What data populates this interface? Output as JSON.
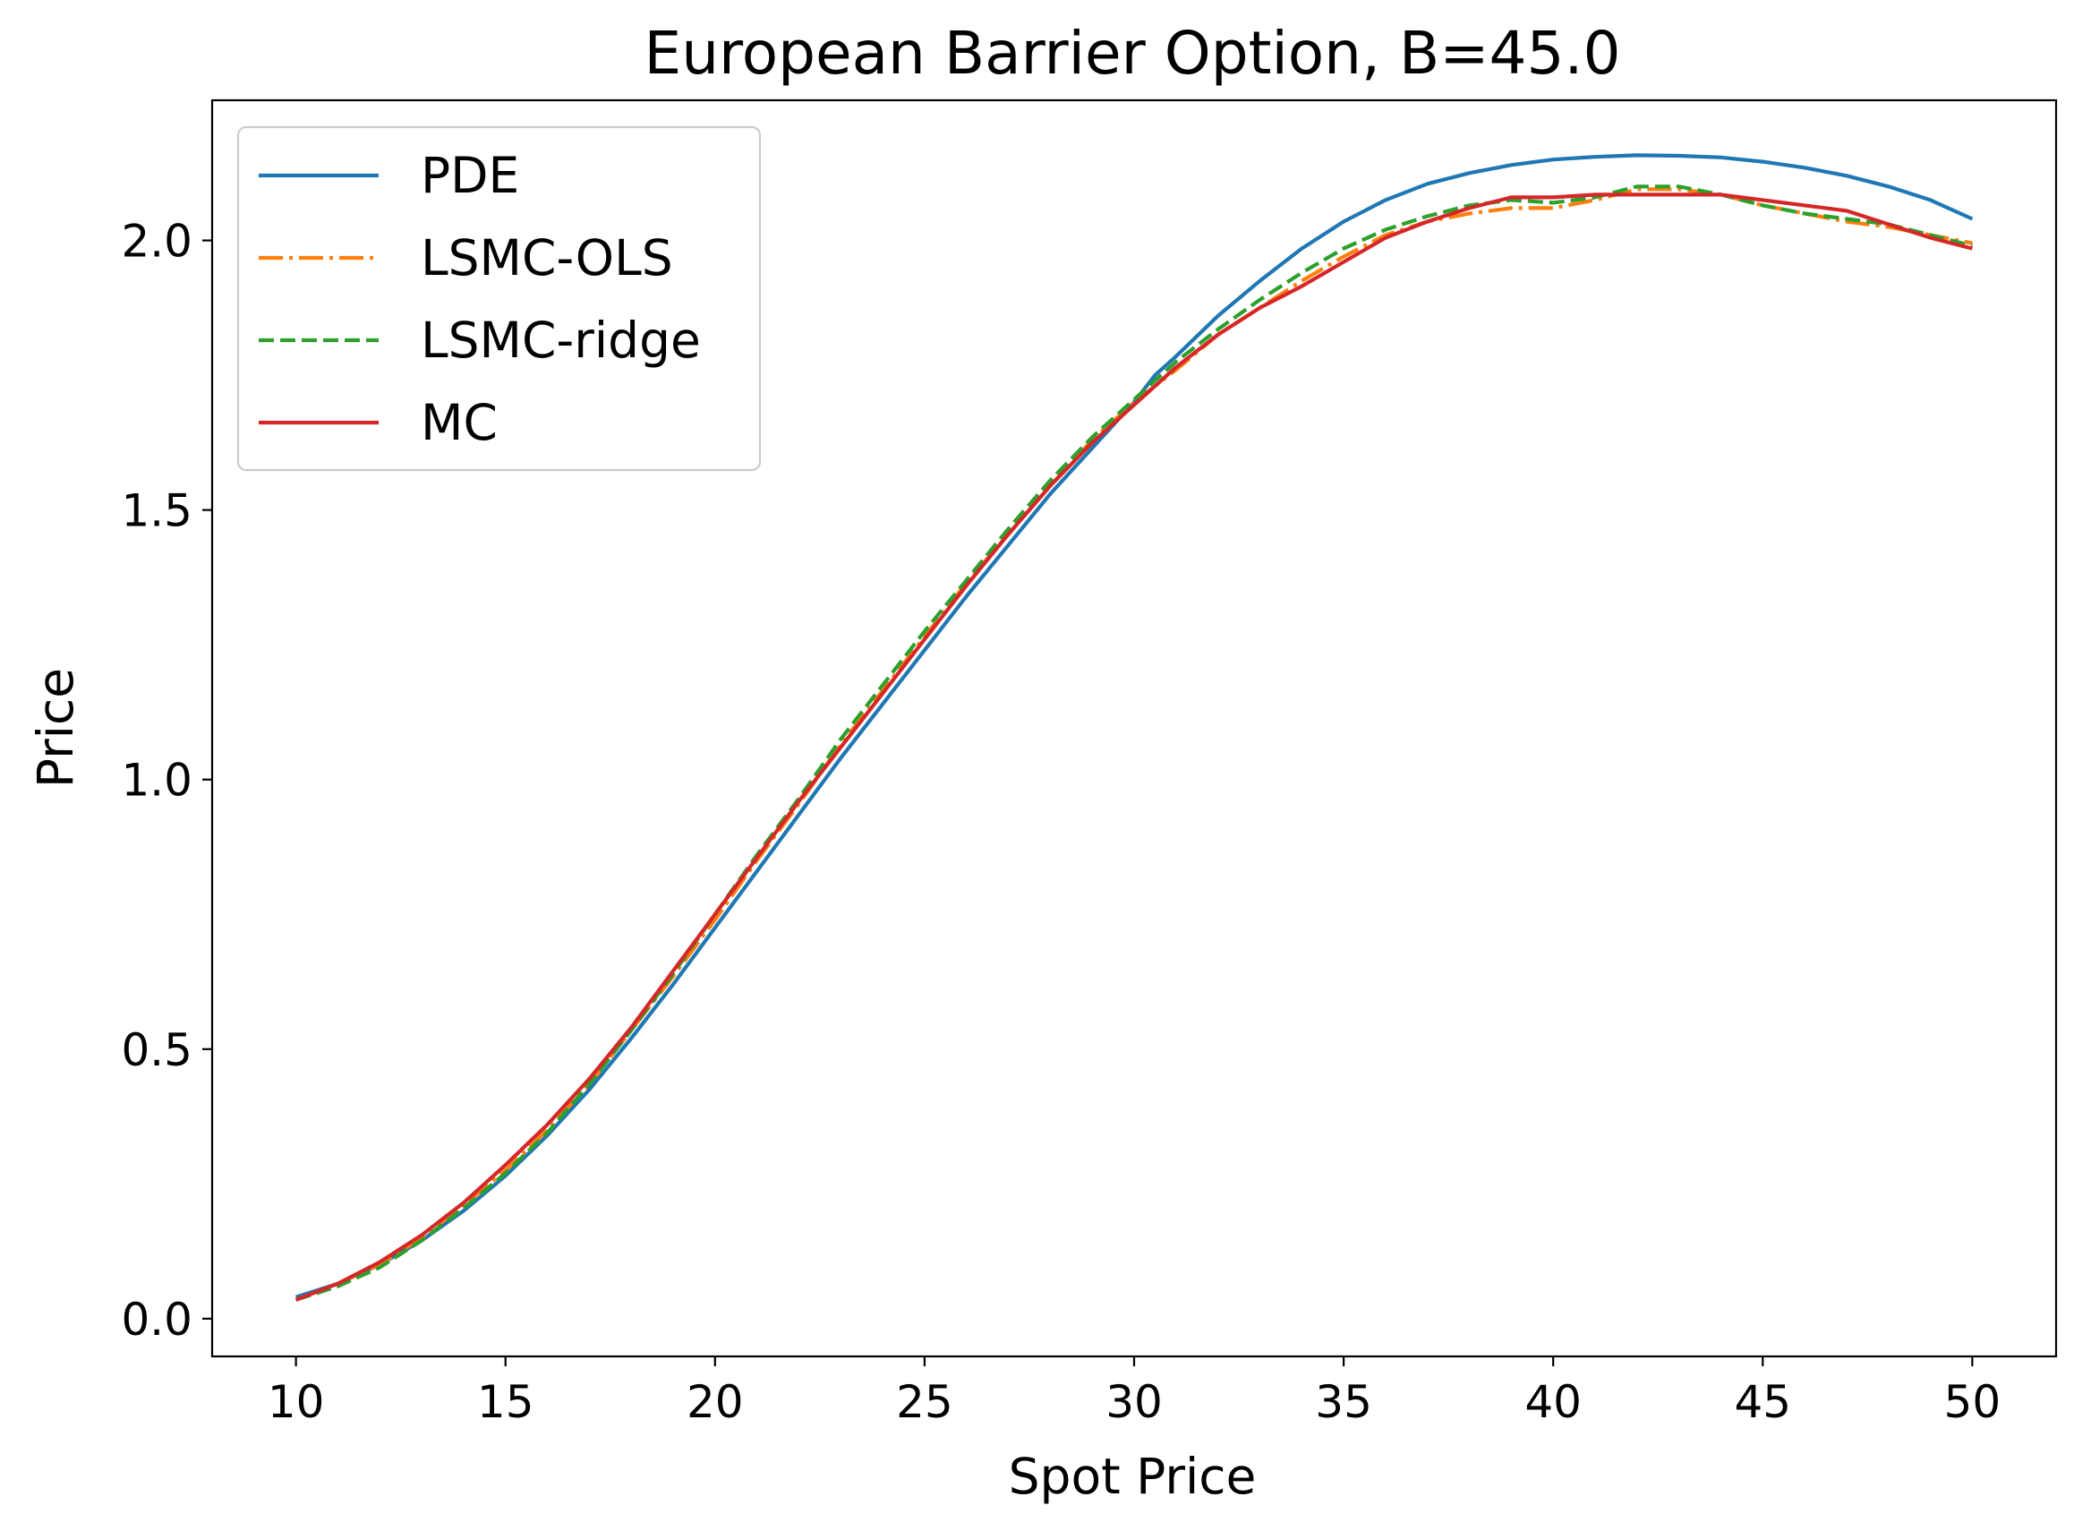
{
  "chart_data": {
    "type": "line",
    "title": "European Barrier Option, B=45.0",
    "xlabel": "Spot Price",
    "ylabel": "Price",
    "xlim": [
      8,
      52
    ],
    "ylim": [
      -0.07,
      2.26
    ],
    "xticks": [
      10,
      15,
      20,
      25,
      30,
      35,
      40,
      45,
      50
    ],
    "xtick_labels": [
      "10",
      "15",
      "20",
      "25",
      "30",
      "35",
      "40",
      "45",
      "50"
    ],
    "yticks": [
      0.0,
      0.5,
      1.0,
      1.5,
      2.0
    ],
    "ytick_labels": [
      "0.0",
      "0.5",
      "1.0",
      "1.5",
      "2.0"
    ],
    "grid": false,
    "legend": "upper-left",
    "series": [
      {
        "name": "PDE",
        "color": "#1f77b4",
        "style": "solid",
        "x": [
          10,
          11,
          12,
          13,
          14,
          15,
          16,
          17,
          18,
          19,
          20,
          21,
          22,
          23,
          24,
          25,
          26,
          27,
          28,
          29,
          30,
          30.5,
          31,
          32,
          33,
          34,
          35,
          36,
          37,
          38,
          39,
          40,
          41,
          42,
          43,
          44,
          45,
          46,
          47,
          48,
          49,
          50
        ],
        "y": [
          0.04,
          0.065,
          0.1,
          0.145,
          0.2,
          0.265,
          0.34,
          0.425,
          0.52,
          0.62,
          0.725,
          0.83,
          0.935,
          1.04,
          1.14,
          1.24,
          1.34,
          1.435,
          1.53,
          1.615,
          1.7,
          1.75,
          1.785,
          1.86,
          1.925,
          1.985,
          2.035,
          2.075,
          2.105,
          2.125,
          2.14,
          2.15,
          2.155,
          2.158,
          2.157,
          2.154,
          2.146,
          2.135,
          2.12,
          2.1,
          2.075,
          2.04
        ]
      },
      {
        "name": "LSMC-OLS",
        "color": "#ff7f0e",
        "style": "dashdot",
        "x": [
          10,
          11,
          12,
          13,
          14,
          15,
          16,
          17,
          18,
          19,
          20,
          21,
          22,
          23,
          24,
          25,
          26,
          27,
          28,
          29,
          30,
          31,
          32,
          33,
          34,
          35,
          36,
          37,
          38,
          39,
          40,
          41,
          42,
          43,
          44,
          45,
          46,
          47,
          48,
          49,
          50
        ],
        "y": [
          0.035,
          0.065,
          0.1,
          0.15,
          0.21,
          0.275,
          0.35,
          0.435,
          0.535,
          0.635,
          0.74,
          0.85,
          0.955,
          1.065,
          1.165,
          1.265,
          1.365,
          1.455,
          1.545,
          1.63,
          1.7,
          1.76,
          1.825,
          1.875,
          1.925,
          1.97,
          2.01,
          2.035,
          2.05,
          2.06,
          2.06,
          2.075,
          2.095,
          2.095,
          2.085,
          2.065,
          2.05,
          2.035,
          2.025,
          2.01,
          1.995
        ]
      },
      {
        "name": "LSMC-ridge",
        "color": "#2ca02c",
        "style": "dashed",
        "x": [
          10,
          11,
          12,
          13,
          14,
          15,
          16,
          17,
          18,
          19,
          20,
          21,
          22,
          23,
          24,
          25,
          26,
          27,
          28,
          29,
          30,
          31,
          32,
          33,
          34,
          35,
          36,
          37,
          38,
          39,
          40,
          41,
          42,
          43,
          44,
          45,
          46,
          47,
          48,
          49,
          50
        ],
        "y": [
          0.035,
          0.06,
          0.095,
          0.145,
          0.205,
          0.27,
          0.345,
          0.435,
          0.535,
          0.64,
          0.75,
          0.86,
          0.965,
          1.075,
          1.175,
          1.275,
          1.37,
          1.465,
          1.555,
          1.635,
          1.705,
          1.775,
          1.835,
          1.89,
          1.94,
          1.985,
          2.02,
          2.045,
          2.065,
          2.075,
          2.07,
          2.08,
          2.1,
          2.1,
          2.085,
          2.065,
          2.05,
          2.04,
          2.03,
          2.01,
          1.99
        ]
      },
      {
        "name": "MC",
        "color": "#d62728",
        "style": "solid",
        "x": [
          10,
          11,
          12,
          13,
          14,
          15,
          16,
          17,
          18,
          19,
          20,
          21,
          22,
          23,
          24,
          25,
          26,
          27,
          28,
          29,
          30,
          31,
          32,
          33,
          34,
          35,
          36,
          37,
          38,
          39,
          40,
          41,
          42,
          43,
          44,
          45,
          46,
          47,
          48,
          49,
          50
        ],
        "y": [
          0.035,
          0.065,
          0.105,
          0.155,
          0.215,
          0.285,
          0.36,
          0.445,
          0.54,
          0.645,
          0.75,
          0.855,
          0.96,
          1.06,
          1.16,
          1.26,
          1.36,
          1.455,
          1.545,
          1.625,
          1.695,
          1.765,
          1.825,
          1.875,
          1.915,
          1.96,
          2.005,
          2.035,
          2.06,
          2.08,
          2.08,
          2.085,
          2.085,
          2.085,
          2.085,
          2.075,
          2.065,
          2.055,
          2.03,
          2.005,
          1.985
        ]
      }
    ]
  }
}
